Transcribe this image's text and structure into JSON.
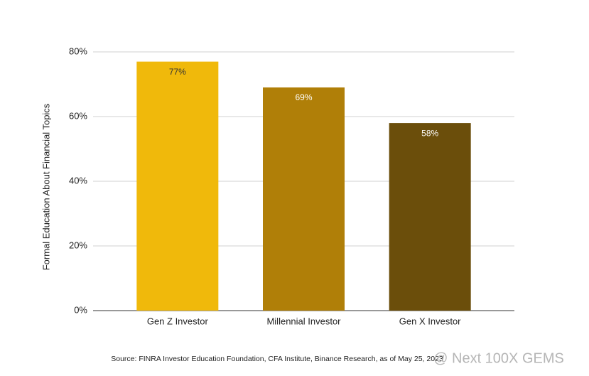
{
  "chart_data": {
    "type": "bar",
    "y_label": "Formal Education About Financial Topics",
    "categories": [
      "Gen Z Investor",
      "Millennial Investor",
      "Gen X Investor"
    ],
    "values": [
      77,
      69,
      58
    ],
    "value_labels": [
      "77%",
      "69%",
      "58%"
    ],
    "colors": [
      "#f0b90b",
      "#b07f08",
      "#6b4e0b"
    ],
    "value_label_colors": [
      "#333333",
      "#ffffff",
      "#ffffff"
    ],
    "ylim": [
      0,
      80
    ],
    "yticks": [
      {
        "value": 0,
        "label": "0%"
      },
      {
        "value": 20,
        "label": "20%"
      },
      {
        "value": 40,
        "label": "40%"
      },
      {
        "value": 60,
        "label": "60%"
      },
      {
        "value": 80,
        "label": "80%"
      }
    ],
    "grid": true,
    "source": "Source: FINRA Investor Education Foundation, CFA Institute, Binance Research, as of May 25, 2023"
  },
  "watermark": "@ Next 100X GEMS"
}
